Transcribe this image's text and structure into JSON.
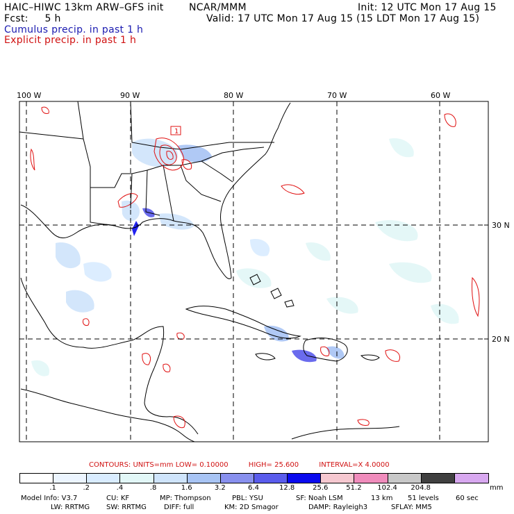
{
  "header": {
    "model_title": "HAIC–HIWC 13km ARW–GFS init",
    "org": "NCAR/MMM",
    "init": "Init: 12 UTC Mon 17 Aug 15",
    "fcst": "Fcst:     5 h",
    "valid": "Valid: 17 UTC Mon 17 Aug 15 (15 LDT Mon 17 Aug 15)",
    "cumulus": "Cumulus precip. in past 1 h",
    "explicit": "Explicit precip. in past 1 h"
  },
  "map": {
    "lon_labels": [
      "100 W",
      "90 W",
      "80 W",
      "70 W",
      "60 W"
    ],
    "lat_labels": [
      "30 N",
      "20 N"
    ],
    "small_contour_label": "1"
  },
  "contours": {
    "label": "CONTOURS:  UNITS=mm  LOW= 0.10000",
    "high": "HIGH=  25.600",
    "interval": "INTERVAL=X  4.0000"
  },
  "colorbar": {
    "colors": [
      "#ffffff",
      "#ecf5ff",
      "#d9ecff",
      "#e2f7f7",
      "#cfe4fb",
      "#a8c4f4",
      "#8890ee",
      "#5a5cec",
      "#0a0aee",
      "#f6c8d0",
      "#f08cbc",
      "#c8c8c8",
      "#404040",
      "#d8a8f0"
    ],
    "labels": [
      ".1",
      ".2",
      ".4",
      ".8",
      "1.6",
      "3.2",
      "6.4",
      "12.8",
      "25.6",
      "51.2",
      "102.4",
      "204.8"
    ],
    "unit": "mm"
  },
  "footer": {
    "line1": [
      "Model Info: V3.7",
      "CU: KF",
      "MP: Thompson",
      "PBL: YSU",
      "SF: Noah LSM",
      "13 km",
      "51 levels",
      "60 sec"
    ],
    "line2": [
      "LW: RRTMG",
      "SW: RRTMG",
      "DIFF: full",
      "KM: 2D Smagor",
      "DAMP: Rayleigh3",
      "SFLAY: MM5"
    ]
  }
}
